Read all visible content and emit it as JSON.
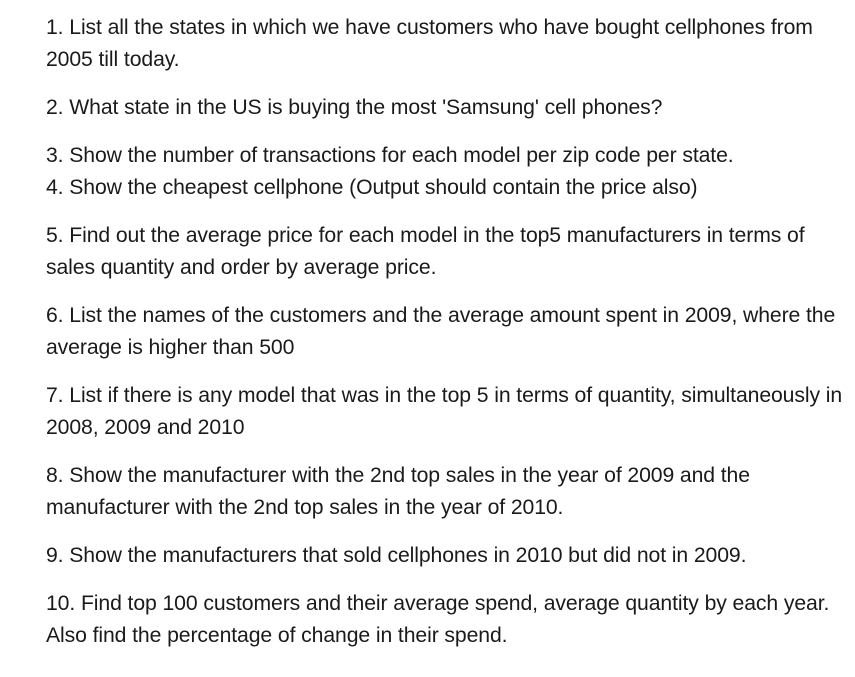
{
  "document": {
    "questions": [
      {
        "text": "1. List all the states in which we have customers who have bought cellphones from 2005 till today."
      },
      {
        "text": "2. What state in the US is buying the most 'Samsung' cell phones?"
      },
      {
        "text": "3. Show the number of transactions for each model per zip code per state."
      },
      {
        "text": "4. Show the cheapest cellphone (Output should contain the price also)"
      },
      {
        "text": "5. Find out the average price for each model in the top5 manufacturers in terms of sales quantity and order by average price."
      },
      {
        "text": "6. List the names of the customers and the average amount spent in 2009, where the average is higher than 500"
      },
      {
        "text": "7. List if there is any model that was in the top 5 in terms of quantity, simultaneously in 2008, 2009 and 2010"
      },
      {
        "text": "8. Show the manufacturer with the 2nd top sales in the year of 2009 and the manufacturer with the 2nd top sales in the year of 2010."
      },
      {
        "text": "9. Show the manufacturers that sold cellphones in 2010 but did not in 2009."
      },
      {
        "text": "10. Find top 100 customers and their average spend, average quantity by each year. Also find the percentage of change in their spend."
      }
    ]
  }
}
